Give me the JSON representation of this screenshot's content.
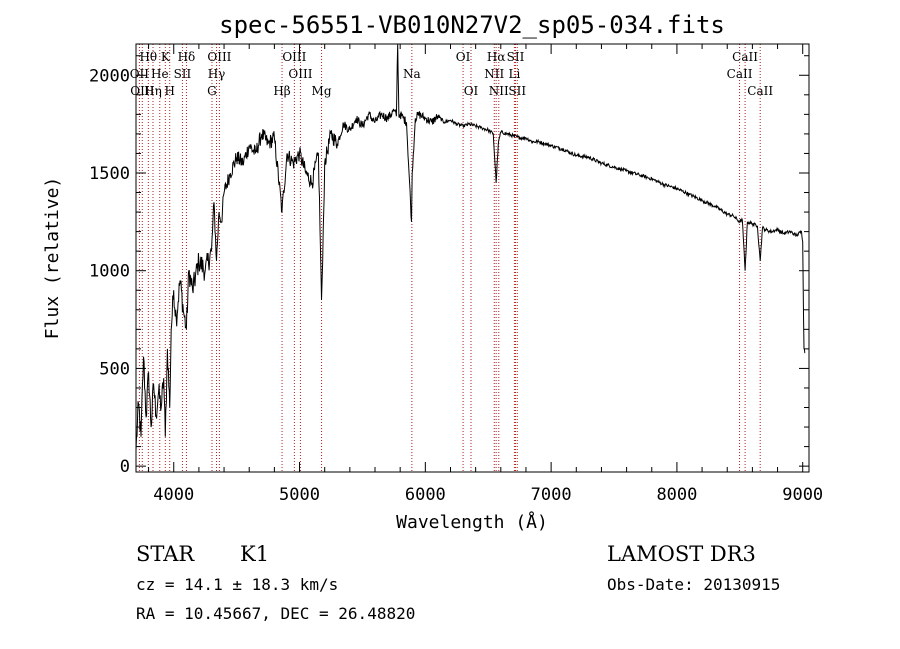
{
  "chart_data": {
    "type": "line",
    "title": "spec-56551-VB010N27V2_sp05-034.fits",
    "xlabel": "Wavelength (Å)",
    "ylabel": "Flux (relative)",
    "xlim": [
      3700,
      9050
    ],
    "ylim": [
      -30,
      2160
    ],
    "xticks": [
      4000,
      5000,
      6000,
      7000,
      8000,
      9000
    ],
    "yticks": [
      0,
      500,
      1000,
      1500,
      2000
    ],
    "spectrum": [
      [
        3700,
        80
      ],
      [
        3720,
        320
      ],
      [
        3740,
        150
      ],
      [
        3760,
        560
      ],
      [
        3780,
        250
      ],
      [
        3800,
        480
      ],
      [
        3820,
        200
      ],
      [
        3840,
        420
      ],
      [
        3860,
        260
      ],
      [
        3880,
        380
      ],
      [
        3900,
        300
      ],
      [
        3920,
        450
      ],
      [
        3933,
        150
      ],
      [
        3950,
        600
      ],
      [
        3968,
        300
      ],
      [
        3980,
        700
      ],
      [
        4000,
        900
      ],
      [
        4020,
        750
      ],
      [
        4050,
        950
      ],
      [
        4080,
        780
      ],
      [
        4101,
        700
      ],
      [
        4120,
        1000
      ],
      [
        4150,
        900
      ],
      [
        4200,
        1050
      ],
      [
        4250,
        1000
      ],
      [
        4300,
        1100
      ],
      [
        4320,
        1350
      ],
      [
        4340,
        1050
      ],
      [
        4360,
        1300
      ],
      [
        4380,
        1250
      ],
      [
        4400,
        1400
      ],
      [
        4450,
        1500
      ],
      [
        4500,
        1580
      ],
      [
        4550,
        1550
      ],
      [
        4600,
        1640
      ],
      [
        4650,
        1600
      ],
      [
        4700,
        1700
      ],
      [
        4750,
        1650
      ],
      [
        4800,
        1680
      ],
      [
        4861,
        1300
      ],
      [
        4900,
        1600
      ],
      [
        4950,
        1550
      ],
      [
        5000,
        1600
      ],
      [
        5050,
        1500
      ],
      [
        5100,
        1450
      ],
      [
        5150,
        1600
      ],
      [
        5167,
        1100
      ],
      [
        5175,
        850
      ],
      [
        5184,
        1050
      ],
      [
        5200,
        1550
      ],
      [
        5250,
        1700
      ],
      [
        5300,
        1650
      ],
      [
        5350,
        1750
      ],
      [
        5400,
        1720
      ],
      [
        5450,
        1780
      ],
      [
        5500,
        1740
      ],
      [
        5550,
        1800
      ],
      [
        5600,
        1760
      ],
      [
        5650,
        1800
      ],
      [
        5700,
        1780
      ],
      [
        5750,
        1820
      ],
      [
        5770,
        1790
      ],
      [
        5780,
        2160
      ],
      [
        5790,
        1790
      ],
      [
        5800,
        1800
      ],
      [
        5850,
        1760
      ],
      [
        5890,
        1250
      ],
      [
        5896,
        1500
      ],
      [
        5920,
        1780
      ],
      [
        5950,
        1800
      ],
      [
        6000,
        1780
      ],
      [
        6050,
        1760
      ],
      [
        6100,
        1790
      ],
      [
        6150,
        1760
      ],
      [
        6200,
        1770
      ],
      [
        6250,
        1750
      ],
      [
        6300,
        1740
      ],
      [
        6350,
        1750
      ],
      [
        6400,
        1740
      ],
      [
        6450,
        1730
      ],
      [
        6500,
        1720
      ],
      [
        6540,
        1700
      ],
      [
        6563,
        1450
      ],
      [
        6580,
        1650
      ],
      [
        6600,
        1710
      ],
      [
        6650,
        1700
      ],
      [
        6700,
        1690
      ],
      [
        6750,
        1680
      ],
      [
        6800,
        1680
      ],
      [
        6850,
        1660
      ],
      [
        6900,
        1660
      ],
      [
        6950,
        1650
      ],
      [
        7000,
        1640
      ],
      [
        7100,
        1620
      ],
      [
        7200,
        1590
      ],
      [
        7300,
        1580
      ],
      [
        7400,
        1550
      ],
      [
        7500,
        1530
      ],
      [
        7600,
        1510
      ],
      [
        7700,
        1490
      ],
      [
        7800,
        1470
      ],
      [
        7900,
        1440
      ],
      [
        8000,
        1420
      ],
      [
        8100,
        1390
      ],
      [
        8200,
        1360
      ],
      [
        8300,
        1330
      ],
      [
        8400,
        1290
      ],
      [
        8450,
        1280
      ],
      [
        8498,
        1250
      ],
      [
        8520,
        1260
      ],
      [
        8542,
        1000
      ],
      [
        8560,
        1250
      ],
      [
        8600,
        1240
      ],
      [
        8640,
        1230
      ],
      [
        8662,
        1050
      ],
      [
        8680,
        1220
      ],
      [
        8700,
        1210
      ],
      [
        8750,
        1200
      ],
      [
        8800,
        1210
      ],
      [
        8850,
        1190
      ],
      [
        8900,
        1200
      ],
      [
        8950,
        1180
      ],
      [
        8990,
        1200
      ],
      [
        9000,
        1150
      ],
      [
        9010,
        600
      ],
      [
        9020,
        580
      ]
    ],
    "lines": [
      {
        "label": "Hθ",
        "wl": 3798,
        "row": 1
      },
      {
        "label": "OII",
        "wl": 3727,
        "row": 2
      },
      {
        "label": "OIII",
        "wl": 3750,
        "row": 3
      },
      {
        "label": "K",
        "wl": 3933,
        "row": 1
      },
      {
        "label": "He",
        "wl": 3889,
        "row": 2
      },
      {
        "label": "Hη",
        "wl": 3835,
        "row": 3
      },
      {
        "label": "Hδ",
        "wl": 4101,
        "row": 1
      },
      {
        "label": "SII",
        "wl": 4069,
        "row": 2
      },
      {
        "label": "H",
        "wl": 3968,
        "row": 3
      },
      {
        "label": "OIII",
        "wl": 4363,
        "row": 1
      },
      {
        "label": "Hγ",
        "wl": 4340,
        "row": 2
      },
      {
        "label": "G",
        "wl": 4304,
        "row": 3
      },
      {
        "label": "OIII",
        "wl": 4959,
        "row": 1
      },
      {
        "label": "OIII",
        "wl": 5007,
        "row": 2
      },
      {
        "label": "Hβ",
        "wl": 4861,
        "row": 3
      },
      {
        "label": "Mg",
        "wl": 5175,
        "row": 3
      },
      {
        "label": "Na",
        "wl": 5893,
        "row": 2
      },
      {
        "label": "OI",
        "wl": 6300,
        "row": 1
      },
      {
        "label": "OI",
        "wl": 6363,
        "row": 3
      },
      {
        "label": "Hα",
        "wl": 6563,
        "row": 1
      },
      {
        "label": "NII",
        "wl": 6548,
        "row": 2
      },
      {
        "label": "NII",
        "wl": 6584,
        "row": 3
      },
      {
        "label": "SII",
        "wl": 6717,
        "row": 1
      },
      {
        "label": "Li",
        "wl": 6708,
        "row": 2
      },
      {
        "label": "SII",
        "wl": 6731,
        "row": 3
      },
      {
        "label": "CaII",
        "wl": 8542,
        "row": 1
      },
      {
        "label": "CaII",
        "wl": 8498,
        "row": 2
      },
      {
        "label": "CaII",
        "wl": 8662,
        "row": 3
      }
    ],
    "line_color": "#b02020",
    "grid": false
  },
  "info": {
    "class_label": "STAR",
    "subclass": "K1",
    "survey": "LAMOST DR3",
    "cz": "cz = 14.1 ± 18.3 km/s",
    "obs_date": "Obs-Date: 20130915",
    "coords": "RA =  10.45667, DEC =  26.48820"
  }
}
